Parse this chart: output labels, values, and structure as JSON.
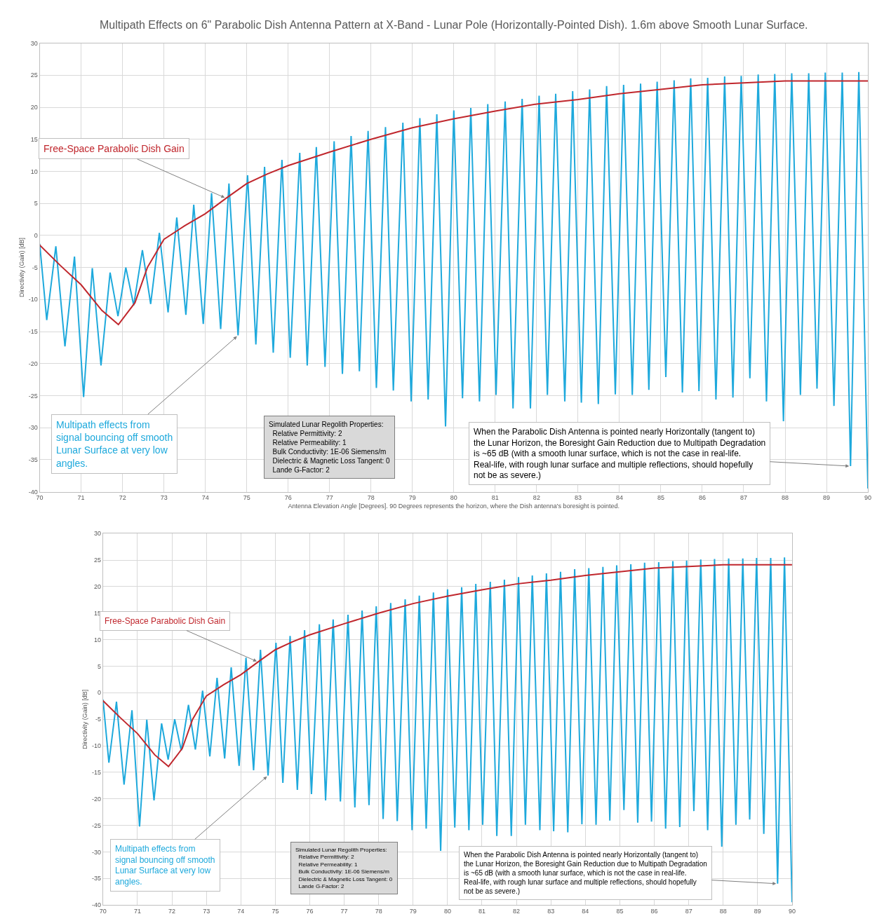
{
  "chart_data": [
    {
      "type": "line",
      "title": "Multipath Effects on 6\" Parabolic Dish Antenna Pattern at X-Band - Lunar Pole (Horizontally-Pointed Dish). 1.6m above Smooth Lunar Surface.",
      "xlabel": "Antenna Elevation Angle [Degrees]. 90 Degrees represents the horizon, where the Dish antenna's boresight is pointed.",
      "ylabel": "Directivity (Gain) [dB]",
      "xlim": [
        70,
        90
      ],
      "xticks": [
        70,
        71,
        72,
        73,
        74,
        75,
        76,
        77,
        78,
        79,
        80,
        81,
        82,
        83,
        84,
        85,
        86,
        87,
        88,
        89,
        90
      ],
      "ylim": [
        -40,
        30
      ],
      "yticks": [
        -40,
        -35,
        -30,
        -25,
        -20,
        -15,
        -10,
        -5,
        0,
        5,
        10,
        15,
        20,
        25,
        30
      ],
      "grid": true,
      "series": [
        {
          "color": "#1ea9dc",
          "x": [
            70,
            70.17,
            70.39,
            70.61,
            70.84,
            71.06,
            71.27,
            71.48,
            71.7,
            71.89,
            72.08,
            72.27,
            72.48,
            72.68,
            72.89,
            73.1,
            73.31,
            73.53,
            73.72,
            73.95,
            74.15,
            74.37,
            74.57,
            74.79,
            75.02,
            75.22,
            75.43,
            75.64,
            75.85,
            76.05,
            76.28,
            76.46,
            76.68,
            76.89,
            77.11,
            77.31,
            77.52,
            77.72,
            77.93,
            78.13,
            78.35,
            78.54,
            78.77,
            78.97,
            79.18,
            79.38,
            79.59,
            79.8,
            80.0,
            80.21,
            80.41,
            80.62,
            80.82,
            81.02,
            81.24,
            81.43,
            81.65,
            81.85,
            82.06,
            82.26,
            82.46,
            82.68,
            82.87,
            83.08,
            83.28,
            83.49,
            83.69,
            83.9,
            84.1,
            84.31,
            84.51,
            84.71,
            84.91,
            85.12,
            85.32,
            85.52,
            85.72,
            85.92,
            86.13,
            86.33,
            86.54,
            86.74,
            86.94,
            87.15,
            87.35,
            87.55,
            87.75,
            87.96,
            88.16,
            88.37,
            88.57,
            88.77,
            88.97,
            89.18,
            89.38,
            89.58,
            89.78,
            90.0
          ],
          "values": [
            -1.3,
            -13.2,
            -1.7,
            -17.3,
            -3.3,
            -25.2,
            -5.1,
            -20.3,
            -5.8,
            -12.6,
            -5.0,
            -10.9,
            -2.3,
            -10.7,
            0.4,
            -12.0,
            2.8,
            -12.4,
            4.8,
            -13.8,
            6.6,
            -14.6,
            8.1,
            -15.6,
            9.4,
            -17.0,
            10.7,
            -18.3,
            11.8,
            -19.1,
            12.9,
            -20.3,
            13.8,
            -20.5,
            14.7,
            -21.6,
            15.5,
            -21.2,
            16.3,
            -23.8,
            16.9,
            -24.2,
            17.6,
            -25.9,
            18.3,
            -25.6,
            18.9,
            -29.8,
            19.5,
            -25.4,
            19.9,
            -25.9,
            20.5,
            -24.9,
            20.9,
            -27.0,
            21.3,
            -27.0,
            21.8,
            -24.9,
            22.1,
            -25.9,
            22.5,
            -26.1,
            22.8,
            -26.3,
            23.3,
            -24.8,
            23.5,
            -24.9,
            23.7,
            -24.1,
            24.0,
            -22.1,
            24.2,
            -24.5,
            24.5,
            -24.3,
            24.6,
            -25.6,
            24.8,
            -25.3,
            24.9,
            -22.3,
            25.1,
            -25.9,
            25.2,
            -29.0,
            25.3,
            -24.9,
            25.3,
            -23.9,
            25.4,
            -26.6,
            25.4,
            -36.0,
            25.5,
            -39.5
          ]
        },
        {
          "color": "#c0272d",
          "x": [
            70,
            70.5,
            71,
            71.5,
            71.9,
            72.3,
            72.6,
            73,
            73.5,
            74,
            74.5,
            75,
            75.5,
            76,
            77,
            78,
            79,
            80,
            81,
            82,
            83,
            84,
            85,
            86,
            87,
            88,
            89,
            90
          ],
          "values": [
            -1.5,
            -4.7,
            -7.7,
            -11.7,
            -13.9,
            -10.5,
            -5.0,
            -0.6,
            1.5,
            3.4,
            5.8,
            8.1,
            9.6,
            10.9,
            13.0,
            15.0,
            16.8,
            18.2,
            19.4,
            20.5,
            21.2,
            22.1,
            22.8,
            23.5,
            23.8,
            24.1,
            24.1,
            24.1
          ]
        }
      ],
      "annotations": [
        {
          "text": "Free-Space Parabolic Dish Gain",
          "x": 74.5,
          "y": 5.8
        },
        {
          "text": "Multipath effects from signal bouncing off smooth Lunar Surface at very low angles.",
          "x": 74.79,
          "y": -15.6
        },
        "Simulated Lunar Regolith Properties:\n  Relative Permittivity: 2\n  Relative Permeability: 1\n  Bulk Conductivity: 1E-06 Siemens/m\n  Dielectric & Magnetic Loss Tangent: 0\n  Lande G-Factor: 2",
        {
          "text": "When the Parabolic Dish Antenna is pointed nearly Horizontally (tangent to) the Lunar Horizon, the Boresight Gain Reduction due to Multipath Degradation is ~65 dB (with a smooth lunar surface, which is not the case in real-life. Real-life, with rough lunar surface and multiple reflections, should hopefully not be as severe.)",
          "x": 89.58,
          "y": -36.0
        }
      ]
    },
    {
      "type": "line",
      "ylabel": "Directivity (Gain) [dB]",
      "xlim": [
        70,
        90
      ],
      "xticks": [
        70,
        71,
        72,
        73,
        74,
        75,
        76,
        77,
        78,
        79,
        80,
        81,
        82,
        83,
        84,
        85,
        86,
        87,
        88,
        89,
        90
      ],
      "ylim": [
        -40,
        30
      ],
      "yticks": [
        -40,
        -35,
        -30,
        -25,
        -20,
        -15,
        -10,
        -5,
        0,
        5,
        10,
        15,
        20,
        25,
        30
      ],
      "grid": true,
      "series": [
        {
          "color": "#1ea9dc",
          "x": [
            70,
            70.17,
            70.39,
            70.61,
            70.84,
            71.06,
            71.27,
            71.48,
            71.7,
            71.89,
            72.08,
            72.27,
            72.48,
            72.68,
            72.89,
            73.1,
            73.31,
            73.53,
            73.72,
            73.95,
            74.15,
            74.37,
            74.57,
            74.79,
            75.02,
            75.22,
            75.43,
            75.64,
            75.85,
            76.05,
            76.28,
            76.46,
            76.68,
            76.89,
            77.11,
            77.31,
            77.52,
            77.72,
            77.93,
            78.13,
            78.35,
            78.54,
            78.77,
            78.97,
            79.18,
            79.38,
            79.59,
            79.8,
            80.0,
            80.21,
            80.41,
            80.62,
            80.82,
            81.02,
            81.24,
            81.43,
            81.65,
            81.85,
            82.06,
            82.26,
            82.46,
            82.68,
            82.87,
            83.08,
            83.28,
            83.49,
            83.69,
            83.9,
            84.1,
            84.31,
            84.51,
            84.71,
            84.91,
            85.12,
            85.32,
            85.52,
            85.72,
            85.92,
            86.13,
            86.33,
            86.54,
            86.74,
            86.94,
            87.15,
            87.35,
            87.55,
            87.75,
            87.96,
            88.16,
            88.37,
            88.57,
            88.77,
            88.97,
            89.18,
            89.38,
            89.58,
            89.78,
            90.0
          ],
          "values": [
            -1.3,
            -13.2,
            -1.7,
            -17.3,
            -3.3,
            -25.2,
            -5.1,
            -20.3,
            -5.8,
            -12.6,
            -5.0,
            -10.9,
            -2.3,
            -10.7,
            0.4,
            -12.0,
            2.8,
            -12.4,
            4.8,
            -13.8,
            6.6,
            -14.6,
            8.1,
            -15.6,
            9.4,
            -17.0,
            10.7,
            -18.3,
            11.8,
            -19.1,
            12.9,
            -20.3,
            13.8,
            -20.5,
            14.7,
            -21.6,
            15.5,
            -21.2,
            16.3,
            -23.8,
            16.9,
            -24.2,
            17.6,
            -25.9,
            18.3,
            -25.6,
            18.9,
            -29.8,
            19.5,
            -25.4,
            19.9,
            -25.9,
            20.5,
            -24.9,
            20.9,
            -27.0,
            21.3,
            -27.0,
            21.8,
            -24.9,
            22.1,
            -25.9,
            22.5,
            -26.1,
            22.8,
            -26.3,
            23.3,
            -24.8,
            23.5,
            -24.9,
            23.7,
            -24.1,
            24.0,
            -22.1,
            24.2,
            -24.5,
            24.5,
            -24.3,
            24.6,
            -25.6,
            24.8,
            -25.3,
            24.9,
            -22.3,
            25.1,
            -25.9,
            25.2,
            -29.0,
            25.3,
            -24.9,
            25.3,
            -23.9,
            25.4,
            -26.6,
            25.4,
            -36.0,
            25.5,
            -39.5
          ]
        },
        {
          "color": "#c0272d",
          "x": [
            70,
            70.5,
            71,
            71.5,
            71.9,
            72.3,
            72.6,
            73,
            73.5,
            74,
            74.5,
            75,
            75.5,
            76,
            77,
            78,
            79,
            80,
            81,
            82,
            83,
            84,
            85,
            86,
            87,
            88,
            89,
            90
          ],
          "values": [
            -1.5,
            -4.7,
            -7.7,
            -11.7,
            -13.9,
            -10.5,
            -5.0,
            -0.6,
            1.5,
            3.4,
            5.8,
            8.1,
            9.6,
            10.9,
            13.0,
            15.0,
            16.8,
            18.2,
            19.4,
            20.5,
            21.2,
            22.1,
            22.8,
            23.5,
            23.8,
            24.1,
            24.1,
            24.1
          ]
        }
      ],
      "annotations": [
        {
          "text": "Free-Space Parabolic Dish Gain",
          "x": 74.5,
          "y": 5.8
        },
        {
          "text": "Multipath effects from signal bouncing off smooth Lunar Surface at very low angles.",
          "x": 74.79,
          "y": -15.6
        },
        "Simulated Lunar Regolith Properties:\n  Relative Permittivity: 2\n  Relative Permeability: 1\n  Bulk Conductivity: 1E-06 Siemens/m\n  Dielectric & Magnetic Loss Tangent: 0\n  Lande G-Factor: 2",
        {
          "text": "When the Parabolic Dish Antenna is pointed nearly Horizontally (tangent to) the Lunar Horizon, the Boresight Gain Reduction due to Multipath Degradation is ~65 dB (with a smooth lunar surface, which is not the case in real-life. Real-life, with rough lunar surface and multiple reflections, should hopefully not be as severe.)",
          "x": 89.58,
          "y": -36.0
        }
      ]
    }
  ]
}
